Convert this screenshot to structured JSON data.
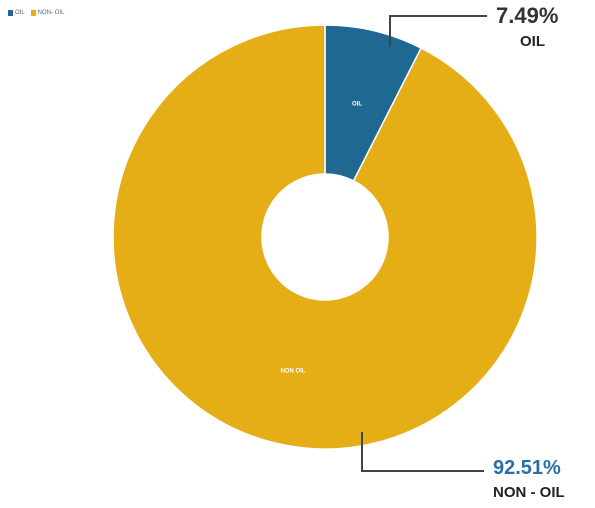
{
  "chart_data": {
    "type": "pie",
    "donut": true,
    "categories": [
      "OIL",
      "NON- OIL"
    ],
    "values": [
      7.49,
      92.51
    ],
    "slice_labels": [
      "OIL",
      "NON OIL"
    ],
    "colors": [
      "#1e6891",
      "#e5ae16"
    ],
    "legend": {
      "placement": "top-left",
      "items": [
        "OIL",
        "NON- OIL"
      ]
    },
    "callouts": [
      {
        "value": "7.49%",
        "label": "OIL"
      },
      {
        "value": "92.51%",
        "label": "NON - OIL"
      }
    ]
  }
}
